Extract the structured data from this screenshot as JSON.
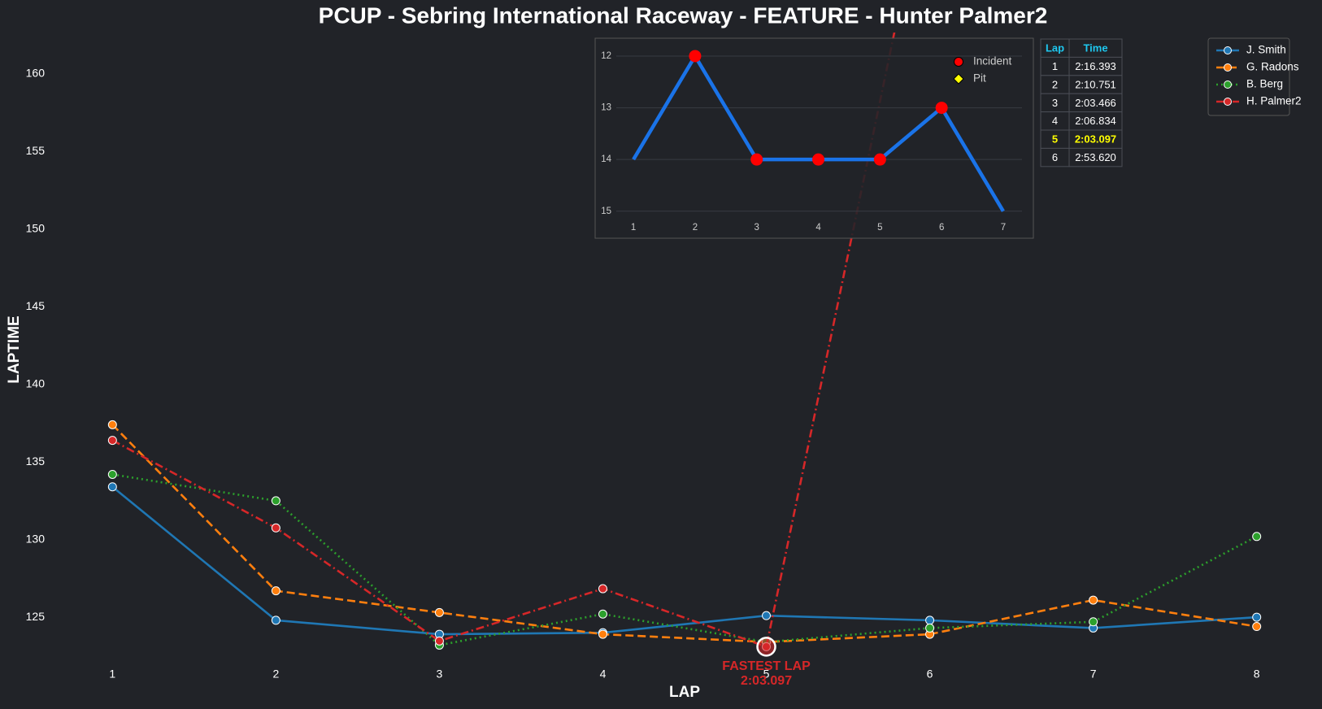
{
  "chart_data": [
    {
      "type": "line",
      "title": "PCUP - Sebring International Raceway - FEATURE - Hunter Palmer2",
      "x_label": "LAP",
      "y_label": "LAPTIME",
      "x": [
        1,
        2,
        3,
        4,
        5,
        6,
        7,
        8
      ],
      "xlim": [
        0.7,
        8.3
      ],
      "xticks": [
        1,
        2,
        3,
        4,
        5,
        6,
        7,
        8
      ],
      "ylim": [
        122.07,
        162.67
      ],
      "yticks": [
        125,
        130,
        135,
        140,
        145,
        150,
        155,
        160
      ],
      "grid": false,
      "legend": "upper right",
      "series": [
        {
          "name": "J. Smith",
          "color": "#1f77b4",
          "linestyle": "solid",
          "values": [
            133.4,
            124.8,
            123.9,
            124.0,
            125.1,
            124.8,
            124.3,
            125.0
          ]
        },
        {
          "name": "G. Radons",
          "color": "#ff7f0e",
          "linestyle": "dashed",
          "values": [
            137.4,
            126.7,
            125.3,
            123.9,
            123.4,
            123.9,
            126.1,
            124.4
          ]
        },
        {
          "name": "B. Berg",
          "color": "#2ca02c",
          "linestyle": "dotted",
          "values": [
            134.2,
            132.5,
            123.2,
            125.2,
            123.4,
            124.3,
            124.7,
            130.2
          ]
        },
        {
          "name": "H. Palmer2",
          "color": "#d62728",
          "linestyle": "dashdot",
          "values": [
            136.393,
            130.751,
            123.466,
            126.834,
            123.097,
            173.62,
            null,
            null
          ]
        }
      ],
      "annotation": {
        "lines": [
          "FASTEST LAP",
          "2:03.097"
        ],
        "x": 5,
        "y": 123.097,
        "color": "#d62728"
      }
    },
    {
      "type": "line",
      "x": [
        1,
        2,
        3,
        4,
        5,
        6,
        7
      ],
      "xlim": [
        0.55,
        7.37
      ],
      "xticks": [
        1,
        2,
        3,
        4,
        5,
        6,
        7
      ],
      "ylim": [
        15.24,
        11.78
      ],
      "yticks": [
        12,
        13,
        14,
        15
      ],
      "grid": true,
      "color": "#1a73e8",
      "values": [
        14,
        12,
        14,
        14,
        14,
        13,
        15
      ],
      "markers": [
        {
          "name": "Incident",
          "color": "#ff0000",
          "shape": "circle",
          "values": [
            null,
            12,
            14,
            14,
            14,
            13,
            null
          ]
        },
        {
          "name": "Pit",
          "color": "#ffff00",
          "shape": "diamond",
          "values": [
            null,
            null,
            null,
            null,
            null,
            null,
            null
          ]
        }
      ]
    }
  ],
  "table": {
    "header": [
      "Lap",
      "Time"
    ],
    "rows": [
      [
        "1",
        "2:16.393"
      ],
      [
        "2",
        "2:10.751"
      ],
      [
        "3",
        "2:03.466"
      ],
      [
        "4",
        "2:06.834"
      ],
      [
        "5",
        "2:03.097"
      ],
      [
        "6",
        "2:53.620"
      ]
    ],
    "highlight_row": 4
  }
}
